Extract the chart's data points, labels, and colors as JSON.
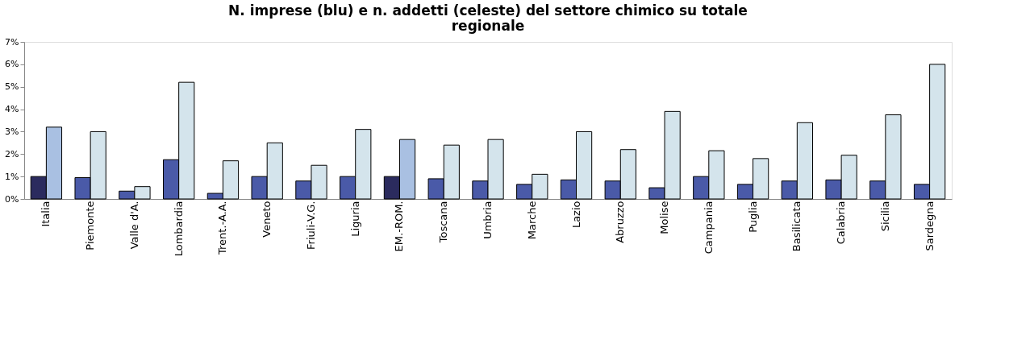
{
  "chart_data": {
    "type": "bar",
    "title": [
      "N. imprese (blu) e n. addetti (celeste) del settore chimico su totale",
      "regionale"
    ],
    "categories": [
      "Italia",
      "Piemonte",
      "Valle d'A.",
      "Lombardia",
      "Trent.-A.A.",
      "Veneto",
      "Friuli-V.G.",
      "Liguria",
      "EM.-ROM.",
      "Toscana",
      "Umbria",
      "Marche",
      "Lazio",
      "Abruzzo",
      "Molise",
      "Campania",
      "Puglia",
      "Basilicata",
      "Calabria",
      "Sicilia",
      "Sardegna"
    ],
    "series": [
      {
        "values": [
          1.0,
          0.95,
          0.35,
          1.75,
          0.25,
          1.0,
          0.8,
          1.0,
          1.0,
          0.9,
          0.8,
          0.65,
          0.85,
          0.8,
          0.5,
          1.0,
          0.65,
          0.8,
          0.85,
          0.8,
          0.65
        ],
        "colors": [
          "#2b2b5e",
          "#4a5aa8",
          "#4a5aa8",
          "#4a5aa8",
          "#4a5aa8",
          "#4a5aa8",
          "#4a5aa8",
          "#4a5aa8",
          "#2b2b5e",
          "#4a5aa8",
          "#4a5aa8",
          "#4a5aa8",
          "#4a5aa8",
          "#4a5aa8",
          "#4a5aa8",
          "#4a5aa8",
          "#4a5aa8",
          "#4a5aa8",
          "#4a5aa8",
          "#4a5aa8",
          "#4a5aa8"
        ]
      },
      {
        "values": [
          3.2,
          3.0,
          0.55,
          5.2,
          1.7,
          2.5,
          1.5,
          3.1,
          2.65,
          2.4,
          2.65,
          1.1,
          3.0,
          2.2,
          3.9,
          2.15,
          1.8,
          3.4,
          1.95,
          3.75,
          6.0
        ],
        "colors": [
          "#a9c0e2",
          "#d4e4ec",
          "#d4e4ec",
          "#d4e4ec",
          "#d4e4ec",
          "#d4e4ec",
          "#d4e4ec",
          "#d4e4ec",
          "#a9c0e2",
          "#d4e4ec",
          "#d4e4ec",
          "#d4e4ec",
          "#d4e4ec",
          "#d4e4ec",
          "#d4e4ec",
          "#d4e4ec",
          "#d4e4ec",
          "#d4e4ec",
          "#d4e4ec",
          "#d4e4ec",
          "#d4e4ec"
        ]
      }
    ],
    "ylim": [
      0,
      7
    ],
    "yticks": [
      {
        "value": 0,
        "label": "0%"
      },
      {
        "value": 1,
        "label": "1%"
      },
      {
        "value": 2,
        "label": "2%"
      },
      {
        "value": 3,
        "label": "3%"
      },
      {
        "value": 4,
        "label": "4%"
      },
      {
        "value": 5,
        "label": "5%"
      },
      {
        "value": 6,
        "label": "6%"
      },
      {
        "value": 7,
        "label": "7%"
      }
    ],
    "grid": false
  }
}
